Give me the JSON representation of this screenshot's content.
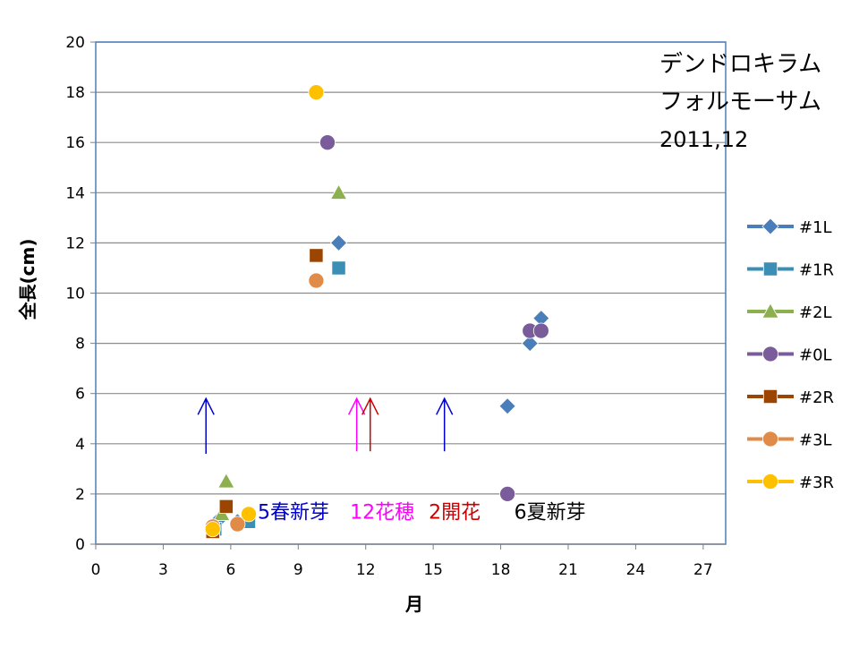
{
  "chart_data": {
    "type": "scatter",
    "title_lines": [
      "デンドロキラム",
      "フォルモーサム",
      "2011,12"
    ],
    "xlabel": "月",
    "ylabel": "全長(cm)",
    "xlim": [
      0,
      28
    ],
    "ylim": [
      0,
      20
    ],
    "xticks": [
      0,
      3,
      6,
      9,
      12,
      15,
      18,
      21,
      24,
      27
    ],
    "yticks": [
      0,
      2,
      4,
      6,
      8,
      10,
      12,
      14,
      16,
      18,
      20
    ],
    "grid": "horizontal",
    "legend_position": "right",
    "series": [
      {
        "name": "#1L",
        "marker": "diamond",
        "color": "#4a7ebb",
        "points": [
          [
            5.2,
            0.5
          ],
          [
            5.5,
            1.0
          ],
          [
            6.3,
            0.9
          ],
          [
            10.8,
            12.0
          ],
          [
            18.3,
            5.5
          ],
          [
            19.3,
            8.0
          ],
          [
            19.8,
            9.0
          ]
        ]
      },
      {
        "name": "#1R",
        "marker": "square",
        "color": "#3b8fb5",
        "points": [
          [
            5.3,
            0.6
          ],
          [
            6.8,
            0.9
          ],
          [
            10.8,
            11.0
          ]
        ]
      },
      {
        "name": "#2L",
        "marker": "triangle",
        "color": "#8db04f",
        "points": [
          [
            5.6,
            1.2
          ],
          [
            5.8,
            2.5
          ],
          [
            10.8,
            14.0
          ]
        ]
      },
      {
        "name": "#0L",
        "marker": "circle",
        "color": "#7a5c9a",
        "points": [
          [
            10.3,
            16.0
          ],
          [
            18.3,
            2.0
          ],
          [
            19.3,
            8.5
          ],
          [
            19.8,
            8.5
          ]
        ]
      },
      {
        "name": "#2R",
        "marker": "square",
        "color": "#9b4500",
        "points": [
          [
            5.2,
            0.5
          ],
          [
            5.8,
            1.5
          ],
          [
            9.8,
            11.5
          ]
        ]
      },
      {
        "name": "#3L",
        "marker": "circle",
        "color": "#e08b47",
        "points": [
          [
            5.2,
            0.7
          ],
          [
            6.3,
            0.8
          ],
          [
            9.8,
            10.5
          ]
        ]
      },
      {
        "name": "#3R",
        "marker": "circle",
        "color": "#ffc000",
        "points": [
          [
            5.2,
            0.6
          ],
          [
            6.8,
            1.2
          ],
          [
            9.8,
            18.0
          ]
        ]
      }
    ],
    "arrows": [
      {
        "x": 4.9,
        "y_from": 3.6,
        "y_to": 5.8,
        "color": "#0000cc"
      },
      {
        "x": 11.6,
        "y_from": 3.7,
        "y_to": 5.8,
        "color": "#ff00ff"
      },
      {
        "x": 12.2,
        "y_from": 3.7,
        "y_to": 5.8,
        "color": "#cc0000"
      },
      {
        "x": 15.5,
        "y_from": 3.7,
        "y_to": 5.8,
        "color": "#0000cc"
      }
    ],
    "annotations": [
      {
        "text": "5春新芽",
        "color": "#0000cc",
        "x": 7.2,
        "y": 1.3
      },
      {
        "text": "12花穂",
        "color": "#ff00ff",
        "x": 11.3,
        "y": 1.3
      },
      {
        "text": "2開花",
        "color": "#cc0000",
        "x": 14.8,
        "y": 1.3
      },
      {
        "text": "6夏新芽",
        "color": "#000000",
        "x": 18.6,
        "y": 1.3
      }
    ]
  }
}
